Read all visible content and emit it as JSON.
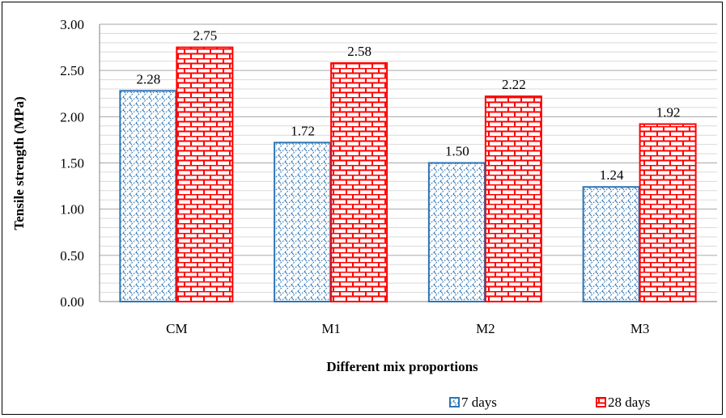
{
  "chart_data": {
    "type": "bar",
    "title": "",
    "xlabel": "Different mix proportions",
    "ylabel": "Tensile strength (MPa)",
    "categories": [
      "CM",
      "M1",
      "M2",
      "M3"
    ],
    "ylim": [
      0,
      3
    ],
    "yticks": [
      "0.00",
      "0.50",
      "1.00",
      "1.50",
      "2.00",
      "2.50",
      "3.00"
    ],
    "grid": true,
    "legend_position": "bottom-right",
    "series": [
      {
        "name": "7 days",
        "values": [
          2.28,
          1.72,
          1.5,
          1.24
        ],
        "labels": [
          "2.28",
          "1.72",
          "1.50",
          "1.24"
        ],
        "color": "#2E75B6",
        "pattern": "diagonal-weave"
      },
      {
        "name": "28 days",
        "values": [
          2.75,
          2.58,
          2.22,
          1.92
        ],
        "labels": [
          "2.75",
          "2.58",
          "2.22",
          "1.92"
        ],
        "color": "#FF0000",
        "pattern": "brick"
      }
    ]
  }
}
